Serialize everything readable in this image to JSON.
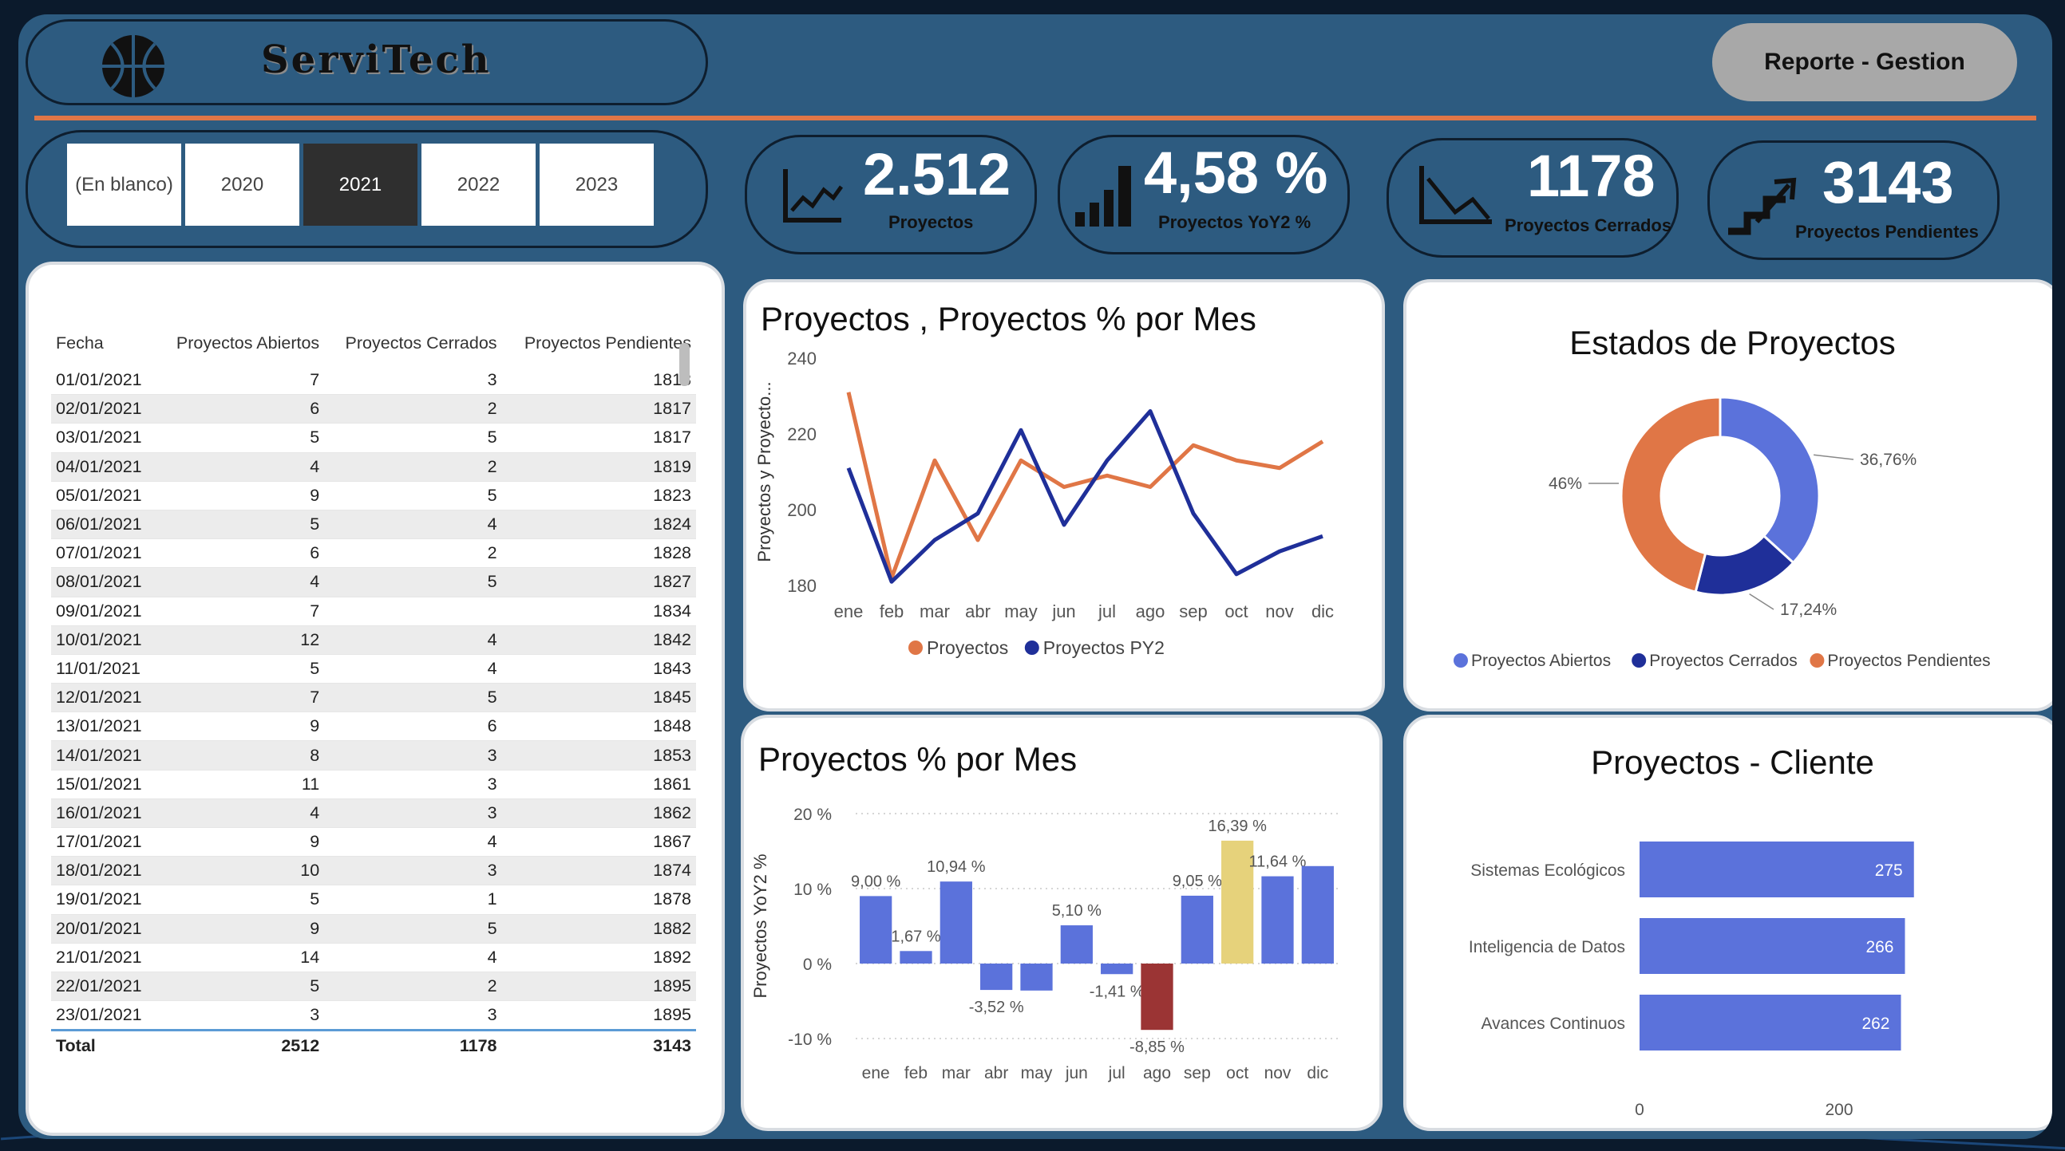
{
  "header": {
    "brand": "ServiTech",
    "report_button": "Reporte - Gestion"
  },
  "year_filter": {
    "options": [
      "(En blanco)",
      "2020",
      "2021",
      "2022",
      "2023"
    ],
    "selected": "2021"
  },
  "kpis": [
    {
      "value": "2.512",
      "label": "Proyectos"
    },
    {
      "value": "4,58 %",
      "label": "Proyectos YoY2 %"
    },
    {
      "value": "1178",
      "label": "Proyectos Cerrados"
    },
    {
      "value": "3143",
      "label": "Proyectos Pendientes"
    }
  ],
  "table": {
    "headers": [
      "Fecha",
      "Proyectos Abiertos",
      "Proyectos Cerrados",
      "Proyectos Pendientes"
    ],
    "rows": [
      [
        "01/01/2021",
        "7",
        "3",
        "1813"
      ],
      [
        "02/01/2021",
        "6",
        "2",
        "1817"
      ],
      [
        "03/01/2021",
        "5",
        "5",
        "1817"
      ],
      [
        "04/01/2021",
        "4",
        "2",
        "1819"
      ],
      [
        "05/01/2021",
        "9",
        "5",
        "1823"
      ],
      [
        "06/01/2021",
        "5",
        "4",
        "1824"
      ],
      [
        "07/01/2021",
        "6",
        "2",
        "1828"
      ],
      [
        "08/01/2021",
        "4",
        "5",
        "1827"
      ],
      [
        "09/01/2021",
        "7",
        "",
        "1834"
      ],
      [
        "10/01/2021",
        "12",
        "4",
        "1842"
      ],
      [
        "11/01/2021",
        "5",
        "4",
        "1843"
      ],
      [
        "12/01/2021",
        "7",
        "5",
        "1845"
      ],
      [
        "13/01/2021",
        "9",
        "6",
        "1848"
      ],
      [
        "14/01/2021",
        "8",
        "3",
        "1853"
      ],
      [
        "15/01/2021",
        "11",
        "3",
        "1861"
      ],
      [
        "16/01/2021",
        "4",
        "3",
        "1862"
      ],
      [
        "17/01/2021",
        "9",
        "4",
        "1867"
      ],
      [
        "18/01/2021",
        "10",
        "3",
        "1874"
      ],
      [
        "19/01/2021",
        "5",
        "1",
        "1878"
      ],
      [
        "20/01/2021",
        "9",
        "5",
        "1882"
      ],
      [
        "21/01/2021",
        "14",
        "4",
        "1892"
      ],
      [
        "22/01/2021",
        "5",
        "2",
        "1895"
      ],
      [
        "23/01/2021",
        "3",
        "3",
        "1895"
      ]
    ],
    "total": [
      "Total",
      "2512",
      "1178",
      "3143"
    ]
  },
  "line_chart": {
    "title": "Proyectos , Proyectos % por Mes",
    "ylabel": "Proyectos y Proyecto...",
    "yticks": [
      "240",
      "220",
      "200",
      "180"
    ]
  },
  "donut_chart": {
    "title": "Estados de Proyectos"
  },
  "waterfall_chart": {
    "title": "Proyectos % por Mes",
    "ylabel": "Proyectos YoY2 %",
    "yticks": [
      "20 %",
      "10 %",
      "0 %",
      "-10 %"
    ]
  },
  "client_chart": {
    "title": "Proyectos - Cliente"
  },
  "colors": {
    "panel": "#2d5b80",
    "orange": "#e07646",
    "navy": "#1f2f99",
    "blue": "#5b72db",
    "yellow": "#e6d27b",
    "red": "#9b3434"
  },
  "chart_data": [
    {
      "type": "line",
      "title": "Proyectos , Proyectos % por Mes",
      "ylabel": "Proyectos y Proyecto...",
      "categories": [
        "ene",
        "feb",
        "mar",
        "abr",
        "may",
        "jun",
        "jul",
        "ago",
        "sep",
        "oct",
        "nov",
        "dic"
      ],
      "series": [
        {
          "name": "Proyectos",
          "color": "#e07646",
          "values": [
            231,
            182,
            213,
            192,
            213,
            206,
            209,
            206,
            217,
            213,
            211,
            218
          ]
        },
        {
          "name": "Proyectos PY2",
          "color": "#1f2f99",
          "values": [
            211,
            181,
            192,
            199,
            221,
            196,
            213,
            226,
            199,
            183,
            189,
            193
          ]
        }
      ],
      "ylim": [
        180,
        240
      ],
      "legend": "bottom"
    },
    {
      "type": "pie",
      "title": "Estados de Proyectos",
      "labels": [
        "Proyectos Abiertos",
        "Proyectos Cerrados",
        "Proyectos Pendientes"
      ],
      "values": [
        36.76,
        17.24,
        46
      ],
      "value_labels": [
        "36,76%",
        "17,24%",
        "46%"
      ],
      "colors": [
        "#5b72db",
        "#1f2f99",
        "#e07646"
      ],
      "legend": "bottom"
    },
    {
      "type": "bar",
      "title": "Proyectos % por Mes",
      "ylabel": "Proyectos YoY2 %",
      "categories": [
        "ene",
        "feb",
        "mar",
        "abr",
        "may",
        "jun",
        "jul",
        "ago",
        "sep",
        "oct",
        "nov",
        "dic"
      ],
      "values": [
        9.0,
        1.67,
        10.94,
        -3.52,
        -3.6,
        5.1,
        -1.41,
        -8.85,
        9.05,
        16.39,
        11.64,
        13.0
      ],
      "data_labels": [
        "9,00 %",
        "1,67 %",
        "10,94 %",
        "-3,52 %",
        "",
        "5,10 %",
        "-1,41 %",
        "-8,85 %",
        "9,05 %",
        "16,39 %",
        "11,64 %",
        ""
      ],
      "ylim": [
        -10,
        20
      ]
    },
    {
      "type": "bar",
      "orientation": "horizontal",
      "title": "Proyectos - Cliente",
      "categories": [
        "Sistemas Ecológicos",
        "Inteligencia de Datos",
        "Avances Continuos"
      ],
      "values": [
        275,
        266,
        262
      ],
      "xticks": [
        "0",
        "200"
      ]
    }
  ]
}
